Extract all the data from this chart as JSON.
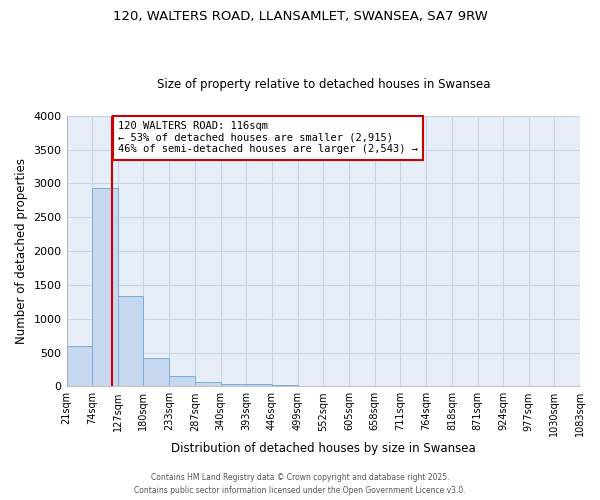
{
  "title_line1": "120, WALTERS ROAD, LLANSAMLET, SWANSEA, SA7 9RW",
  "title_line2": "Size of property relative to detached houses in Swansea",
  "xlabel": "Distribution of detached houses by size in Swansea",
  "ylabel": "Number of detached properties",
  "bar_edges": [
    21,
    74,
    127,
    180,
    233,
    287,
    340,
    393,
    446,
    499,
    552,
    605,
    658,
    711,
    764,
    818,
    871,
    924,
    977,
    1030,
    1083
  ],
  "bar_values": [
    590,
    2930,
    1340,
    420,
    160,
    70,
    40,
    30,
    20,
    0,
    0,
    0,
    0,
    0,
    0,
    0,
    0,
    0,
    0,
    0
  ],
  "bar_color": "#c5d8f0",
  "bar_edge_color": "#7aaed6",
  "grid_color": "#c8d4e8",
  "plot_bg_color": "#e8eef8",
  "fig_bg_color": "#ffffff",
  "red_line_x": 116,
  "red_line_color": "#cc0000",
  "annotation_text": "120 WALTERS ROAD: 116sqm\n← 53% of detached houses are smaller (2,915)\n46% of semi-detached houses are larger (2,543) →",
  "annotation_box_facecolor": "#ffffff",
  "annotation_border_color": "#cc0000",
  "footnote1": "Contains HM Land Registry data © Crown copyright and database right 2025.",
  "footnote2": "Contains public sector information licensed under the Open Government Licence v3.0.",
  "tick_labels": [
    "21sqm",
    "74sqm",
    "127sqm",
    "180sqm",
    "233sqm",
    "287sqm",
    "340sqm",
    "393sqm",
    "446sqm",
    "499sqm",
    "552sqm",
    "605sqm",
    "658sqm",
    "711sqm",
    "764sqm",
    "818sqm",
    "871sqm",
    "924sqm",
    "977sqm",
    "1030sqm",
    "1083sqm"
  ],
  "ylim": [
    0,
    4000
  ],
  "yticks": [
    0,
    500,
    1000,
    1500,
    2000,
    2500,
    3000,
    3500,
    4000
  ]
}
